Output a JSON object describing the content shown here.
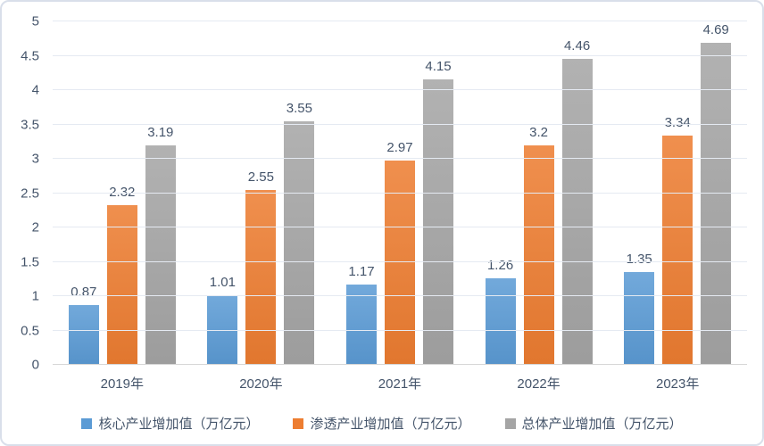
{
  "chart_data": {
    "type": "bar",
    "title": "",
    "xlabel": "",
    "ylabel": "",
    "categories": [
      "2019年",
      "2020年",
      "2021年",
      "2022年",
      "2023年"
    ],
    "series": [
      {
        "name": "核心产业增加值（万亿元）",
        "color": "#5B9BD5",
        "values": [
          0.87,
          1.01,
          1.17,
          1.26,
          1.35
        ]
      },
      {
        "name": "渗透产业增加值（万亿元）",
        "color": "#ED7D31",
        "values": [
          2.32,
          2.55,
          2.97,
          3.2,
          3.34
        ]
      },
      {
        "name": "总体产业增加值（万亿元）",
        "color": "#A5A5A5",
        "values": [
          3.19,
          3.55,
          4.15,
          4.46,
          4.69
        ]
      }
    ],
    "ylim": [
      0,
      5
    ],
    "ytick_step": 0.5,
    "grid": true,
    "legend_position": "bottom"
  },
  "colors": {
    "text": "#44546A",
    "gridline": "#E5EAF2",
    "axis_line": "#D6D6D6",
    "card_border": "#D9DFEA",
    "background": "#FFFFFF"
  }
}
